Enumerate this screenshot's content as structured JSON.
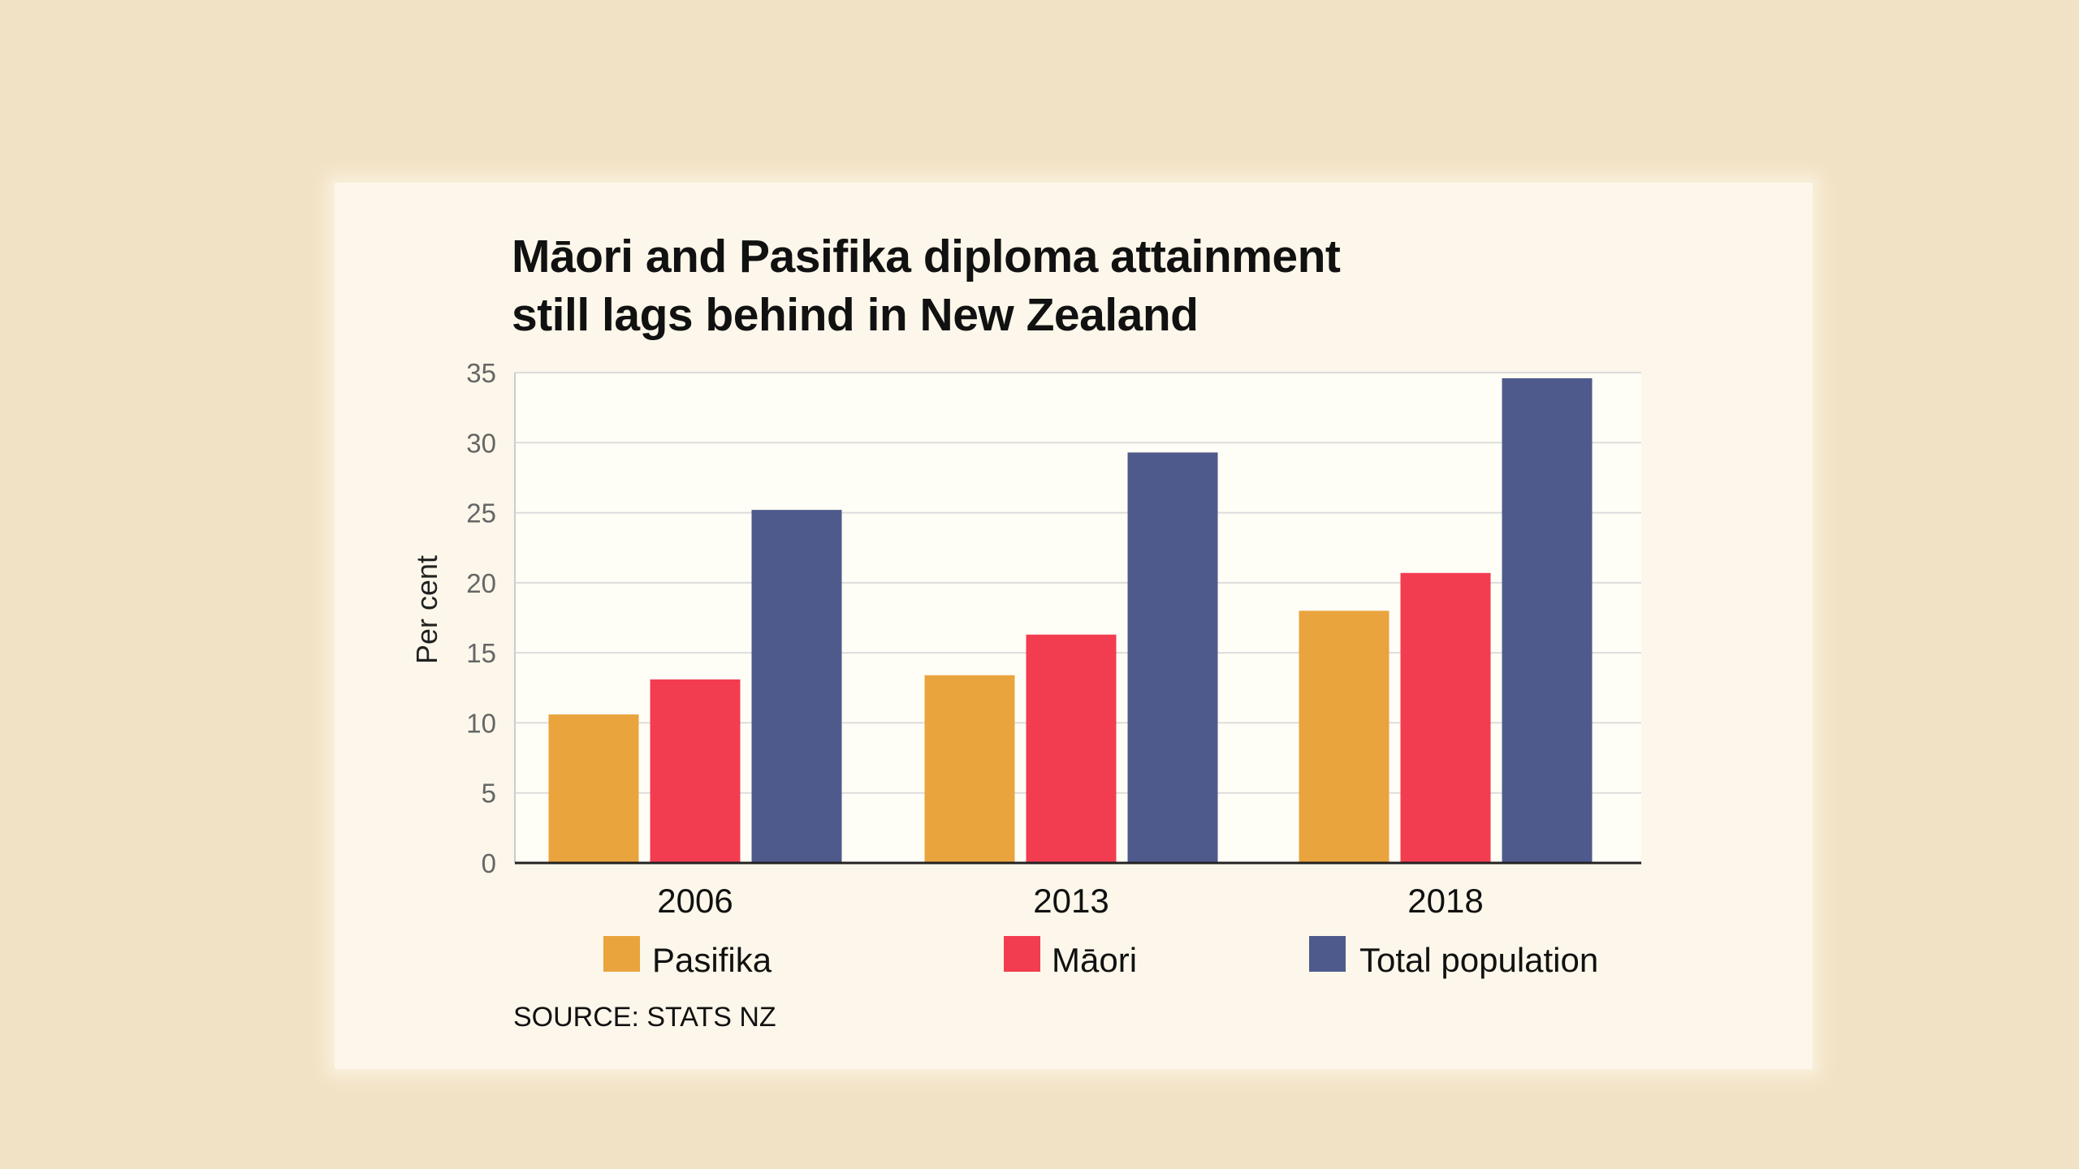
{
  "title_line1": "Māori and Pasifika diploma attainment",
  "title_line2": "still lags behind in New Zealand",
  "source": "SOURCE: STATS NZ",
  "chart_data": {
    "type": "bar",
    "title": "Māori and Pasifika diploma attainment still lags behind in New Zealand",
    "xlabel": "",
    "ylabel": "Per cent",
    "ylim": [
      0,
      35
    ],
    "yticks": [
      "0",
      "5",
      "10",
      "15",
      "20",
      "25",
      "30",
      "35"
    ],
    "grid": true,
    "legend_placement": "bottom",
    "categories": [
      "2006",
      "2013",
      "2018"
    ],
    "series": [
      {
        "name": "Pasifika",
        "color": "#e9a43e",
        "values": [
          10.6,
          13.4,
          18.0
        ]
      },
      {
        "name": "Māori",
        "color": "#f23d50",
        "values": [
          13.1,
          16.3,
          20.7
        ]
      },
      {
        "name": "Total population",
        "color": "#4f5a8c",
        "values": [
          25.2,
          29.3,
          34.6
        ]
      }
    ]
  }
}
